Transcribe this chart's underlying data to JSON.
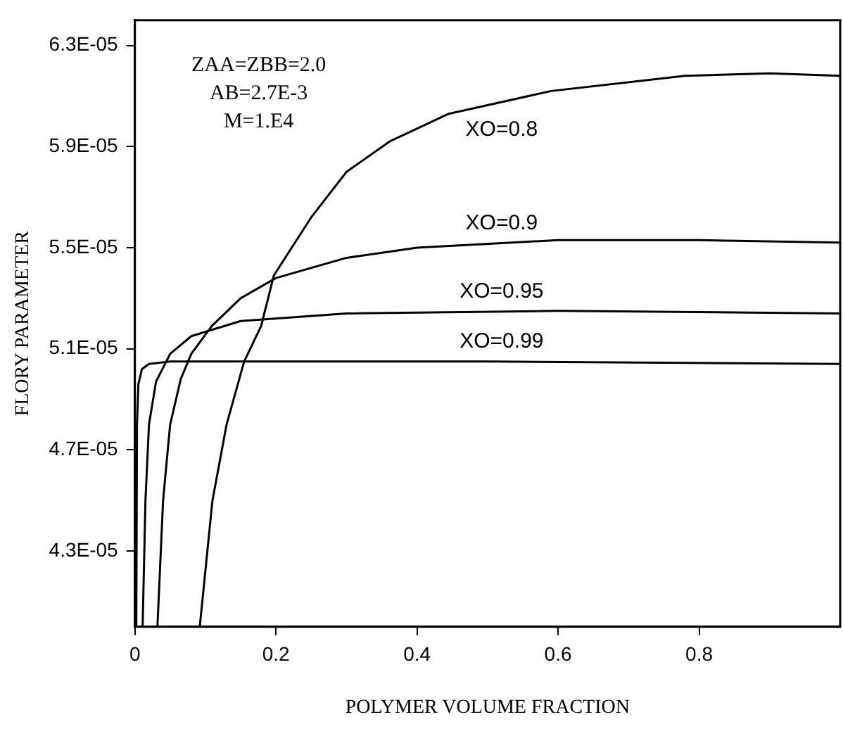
{
  "chart_data": {
    "type": "line",
    "xlabel": "POLYMER VOLUME FRACTION",
    "ylabel": "FLORY PARAMETER",
    "xlim": [
      0,
      1
    ],
    "xticks": [
      0,
      0.2,
      0.4,
      0.6,
      0.8
    ],
    "ylim": [
      4e-05,
      6.4e-05
    ],
    "yticks": [
      {
        "value": 4.3e-05,
        "label": "4.3E-05"
      },
      {
        "value": 4.7e-05,
        "label": "4.7E-05"
      },
      {
        "value": 5.1e-05,
        "label": "5.1E-05"
      },
      {
        "value": 5.5e-05,
        "label": "5.5E-05"
      },
      {
        "value": 5.9e-05,
        "label": "5.9E-05"
      },
      {
        "value": 6.3e-05,
        "label": "6.3E-05"
      }
    ],
    "grid": false,
    "legend": false,
    "marker": "none",
    "line_style": "solid",
    "series": [
      {
        "name": "XO=0.8",
        "color": "#000000",
        "x": [
          0.092,
          0.11,
          0.13,
          0.155,
          0.179,
          0.197,
          0.25,
          0.3,
          0.361,
          0.445,
          0.59,
          0.78,
          0.9,
          1.0
        ],
        "values": [
          4e-05,
          4.5e-05,
          4.8e-05,
          5.05e-05,
          5.19e-05,
          5.39e-05,
          5.62e-05,
          5.8e-05,
          5.92e-05,
          6.03e-05,
          6.12e-05,
          6.18e-05,
          6.19e-05,
          6.18e-05
        ]
      },
      {
        "name": "XO=0.9",
        "color": "#000000",
        "x": [
          0.032,
          0.04,
          0.05,
          0.065,
          0.08,
          0.109,
          0.15,
          0.2,
          0.3,
          0.4,
          0.6,
          0.8,
          1.0
        ],
        "values": [
          4e-05,
          4.5e-05,
          4.8e-05,
          4.98e-05,
          5.08e-05,
          5.19e-05,
          5.3e-05,
          5.38e-05,
          5.46e-05,
          5.5e-05,
          5.53e-05,
          5.53e-05,
          5.52e-05
        ]
      },
      {
        "name": "XO=0.95",
        "color": "#000000",
        "x": [
          0.011,
          0.015,
          0.02,
          0.03,
          0.05,
          0.08,
          0.15,
          0.3,
          0.6,
          1.0
        ],
        "values": [
          4e-05,
          4.5e-05,
          4.8e-05,
          4.97e-05,
          5.08e-05,
          5.15e-05,
          5.21e-05,
          5.24e-05,
          5.25e-05,
          5.24e-05
        ]
      },
      {
        "name": "XO=0.99",
        "color": "#000000",
        "x": [
          0.002,
          0.003,
          0.005,
          0.01,
          0.02,
          0.05,
          0.5,
          1.0
        ],
        "values": [
          4e-05,
          4.8e-05,
          4.96e-05,
          5.02e-05,
          5.04e-05,
          5.05e-05,
          5.05e-05,
          5.04e-05
        ]
      }
    ],
    "annotations": [
      "ZAA=ZBB=2.0",
      "AB=2.7E-3",
      "M=1.E4"
    ]
  }
}
